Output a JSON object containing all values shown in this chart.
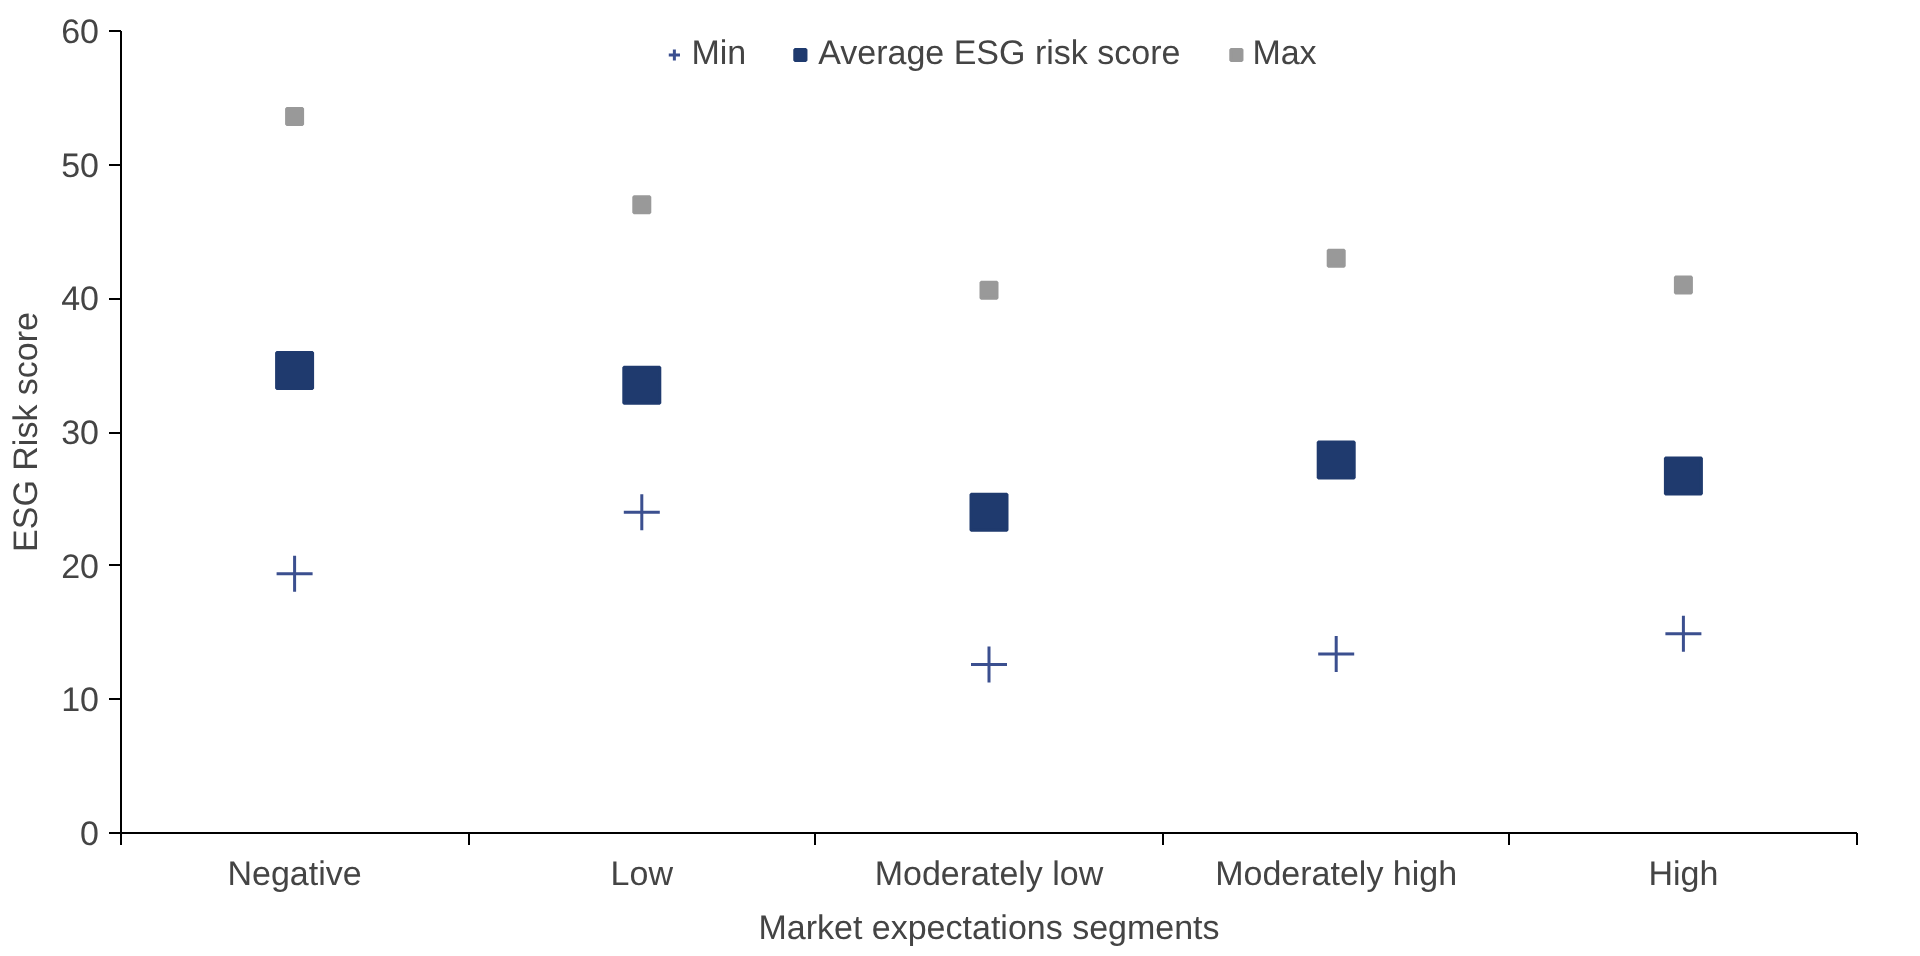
{
  "chart_data": {
    "type": "scatter",
    "xlabel": "Market expectations segments",
    "ylabel": "ESG Risk score",
    "categories": [
      "Negative",
      "Low",
      "Moderately low",
      "Moderately high",
      "High"
    ],
    "series": [
      {
        "name": "Min",
        "color": "#3b4f8f",
        "marker": "cross",
        "values": [
          19.4,
          24.0,
          12.6,
          13.4,
          14.9
        ]
      },
      {
        "name": "Average ESG risk score",
        "color": "#1f3a6e",
        "marker": "square",
        "values": [
          34.6,
          33.5,
          24.0,
          27.9,
          26.7
        ]
      },
      {
        "name": "Max",
        "color": "#999999",
        "marker": "square",
        "values": [
          53.6,
          47.0,
          40.6,
          43.0,
          41.0
        ]
      }
    ],
    "ylim": [
      0,
      60
    ],
    "yticks": [
      0,
      10,
      20,
      30,
      40,
      50,
      60
    ],
    "grid": false,
    "legend": "top"
  }
}
